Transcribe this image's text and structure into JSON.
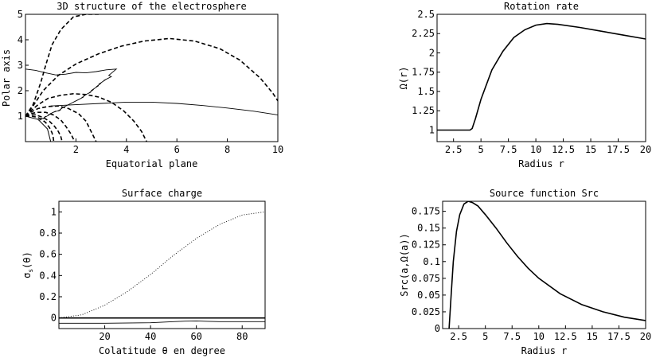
{
  "chart_data": [
    {
      "id": "p1",
      "type": "line",
      "title": "3D structure of the electrosphere",
      "xlabel": "Equatorial plane",
      "ylabel": "Polar axis",
      "xlim": [
        0,
        10
      ],
      "ylim": [
        0,
        5
      ],
      "xticks": [
        2,
        4,
        6,
        8,
        10
      ],
      "yticks": [
        1,
        2,
        3,
        4,
        5
      ],
      "grid": false,
      "dashed_field_lines": [
        {
          "x": [
            0.0,
            0.3,
            0.6,
            0.8,
            1.05,
            1.4,
            1.9,
            2.4,
            2.9
          ],
          "y": [
            1.0,
            1.45,
            2.3,
            3.0,
            3.8,
            4.4,
            4.9,
            5.0,
            5.0
          ]
        },
        {
          "x": [
            0.0,
            0.3,
            0.7,
            1.3,
            2.0,
            2.9,
            3.8,
            4.7,
            5.7,
            6.7,
            7.7,
            8.5,
            9.3,
            9.8,
            10.0
          ],
          "y": [
            1.0,
            1.4,
            2.0,
            2.6,
            3.05,
            3.45,
            3.75,
            3.95,
            4.05,
            3.95,
            3.65,
            3.2,
            2.5,
            1.9,
            1.6
          ]
        },
        {
          "x": [
            0.0,
            0.2,
            0.5,
            0.9,
            1.4,
            1.9,
            2.4,
            2.9,
            3.4,
            3.9,
            4.3,
            4.6,
            4.8
          ],
          "y": [
            1.0,
            1.2,
            1.45,
            1.7,
            1.82,
            1.88,
            1.85,
            1.75,
            1.55,
            1.2,
            0.8,
            0.4,
            0.0
          ]
        },
        {
          "x": [
            0.0,
            0.2,
            0.5,
            0.9,
            1.3,
            1.7,
            2.1,
            2.4,
            2.6,
            2.8
          ],
          "y": [
            1.0,
            1.15,
            1.3,
            1.38,
            1.4,
            1.3,
            1.1,
            0.8,
            0.4,
            0.0
          ]
        },
        {
          "x": [
            0.0,
            0.2,
            0.5,
            0.8,
            1.1,
            1.4,
            1.6,
            1.8,
            1.95
          ],
          "y": [
            1.0,
            1.1,
            1.15,
            1.15,
            1.05,
            0.85,
            0.6,
            0.3,
            0.0
          ]
        },
        {
          "x": [
            0.0,
            0.2,
            0.4,
            0.7,
            0.95,
            1.15,
            1.3,
            1.4,
            1.45
          ],
          "y": [
            1.0,
            1.05,
            1.05,
            0.95,
            0.8,
            0.6,
            0.4,
            0.2,
            0.0
          ]
        },
        {
          "x": [
            0.0,
            0.2,
            0.4,
            0.6,
            0.8,
            0.95,
            1.05,
            1.1,
            1.12
          ],
          "y": [
            1.0,
            1.0,
            0.97,
            0.9,
            0.75,
            0.55,
            0.35,
            0.15,
            0.0
          ]
        }
      ],
      "solid_lines": [
        {
          "x": [
            0.0,
            0.4,
            0.8,
            1.2,
            1.6,
            2.0,
            2.4,
            2.8,
            3.2,
            3.6,
            3.3,
            3.4,
            3.1,
            3.2,
            2.9,
            3.0,
            2.8,
            2.9,
            2.6,
            2.7,
            2.5,
            2.6,
            2.3,
            2.4,
            2.2,
            2.3,
            2.0,
            2.1,
            1.9,
            2.0,
            1.7,
            1.8,
            1.6,
            1.7,
            1.4,
            1.5,
            1.3,
            1.4,
            1.1,
            1.2,
            1.0,
            1.1,
            0.9,
            0.95,
            0.75,
            0.8,
            0.7,
            0.65,
            0.6,
            0.5
          ],
          "y": [
            2.85,
            2.8,
            2.7,
            2.62,
            2.65,
            2.72,
            2.7,
            2.75,
            2.82,
            2.85,
            2.6,
            2.55,
            2.4,
            2.45,
            2.25,
            2.3,
            2.15,
            2.2,
            2.0,
            2.05,
            1.9,
            1.95,
            1.8,
            1.85,
            1.7,
            1.75,
            1.6,
            1.65,
            1.55,
            1.6,
            1.45,
            1.5,
            1.4,
            1.45,
            1.3,
            1.35,
            1.2,
            1.25,
            1.15,
            1.2,
            1.1,
            1.15,
            1.05,
            1.05,
            0.95,
            1.0,
            0.9,
            0.92,
            0.85,
            0.85
          ]
        },
        {
          "x": [
            1.0,
            2.0,
            3.0,
            4.0,
            5.0,
            6.0,
            7.0,
            8.0,
            9.0,
            10.0
          ],
          "y": [
            1.4,
            1.45,
            1.5,
            1.55,
            1.55,
            1.5,
            1.42,
            1.32,
            1.2,
            1.05
          ]
        }
      ],
      "star_outline": {
        "x": [
          0.0,
          0.5,
          0.87,
          1.0
        ],
        "y": [
          1.0,
          0.87,
          0.5,
          0.0
        ]
      }
    },
    {
      "id": "p2",
      "type": "line",
      "title": "Rotation rate",
      "xlabel": "Radius r",
      "ylabel": "Ω(r)",
      "xlim": [
        1,
        20
      ],
      "ylim": [
        0.85,
        2.5
      ],
      "xticks": [
        "2.5",
        "5",
        "7.5",
        "10",
        "12.5",
        "15",
        "17.5",
        "20"
      ],
      "yticks": [
        "1",
        "1.25",
        "1.5",
        "1.75",
        "2",
        "2.25",
        "2.5"
      ],
      "grid": false,
      "series": [
        {
          "x": [
            1,
            2,
            3,
            4,
            4.2,
            4.5,
            5,
            6,
            7,
            8,
            9,
            10,
            11,
            12,
            14,
            16,
            18,
            20
          ],
          "y": [
            1,
            1,
            1,
            1,
            1.02,
            1.15,
            1.4,
            1.78,
            2.02,
            2.2,
            2.3,
            2.36,
            2.38,
            2.37,
            2.33,
            2.28,
            2.23,
            2.18
          ]
        }
      ]
    },
    {
      "id": "p3",
      "type": "line",
      "title": "Surface charge",
      "xlabel": "Colatitude θ en degree",
      "ylabel": "σs(θ)",
      "ylabel_main": "σ",
      "ylabel_sub": "s",
      "ylabel_tail": "(θ)",
      "xlim": [
        0,
        90
      ],
      "ylim": [
        -0.1,
        1.1
      ],
      "xticks": [
        "20",
        "40",
        "60",
        "80"
      ],
      "yticks": [
        "0",
        "0.2",
        "0.4",
        "0.6",
        "0.8",
        "1"
      ],
      "grid": false,
      "series": [
        {
          "style": "dotted",
          "x": [
            0,
            10,
            20,
            30,
            40,
            50,
            60,
            70,
            80,
            90
          ],
          "y": [
            0.0,
            0.03,
            0.12,
            0.25,
            0.41,
            0.59,
            0.75,
            0.88,
            0.97,
            1.0
          ]
        },
        {
          "style": "solid",
          "x": [
            0,
            90
          ],
          "y": [
            0.0,
            0.0
          ]
        },
        {
          "style": "solid-thin",
          "x": [
            0,
            20,
            40,
            50,
            55,
            60,
            65,
            70,
            80,
            90
          ],
          "y": [
            -0.05,
            -0.05,
            -0.045,
            -0.035,
            -0.03,
            -0.028,
            -0.032,
            -0.035,
            -0.035,
            -0.035
          ]
        }
      ]
    },
    {
      "id": "p4",
      "type": "line",
      "title": "Source function Src",
      "xlabel": "Radius r",
      "ylabel": "Src(a,Ω(a))",
      "xlim": [
        1,
        20
      ],
      "ylim": [
        0,
        0.19
      ],
      "xticks": [
        "2.5",
        "5",
        "7.5",
        "10",
        "12.5",
        "15",
        "17.5",
        "20"
      ],
      "yticks": [
        "0",
        "0.025",
        "0.05",
        "0.075",
        "0.1",
        "0.125",
        "0.15",
        "0.175"
      ],
      "grid": false,
      "series": [
        {
          "x": [
            1.6,
            1.8,
            2.0,
            2.3,
            2.6,
            3.0,
            3.4,
            3.8,
            4.3,
            5,
            6,
            7,
            8,
            9,
            10,
            12,
            14,
            16,
            18,
            20
          ],
          "y": [
            0.0,
            0.05,
            0.1,
            0.145,
            0.17,
            0.186,
            0.19,
            0.188,
            0.183,
            0.17,
            0.15,
            0.128,
            0.108,
            0.09,
            0.075,
            0.052,
            0.036,
            0.025,
            0.017,
            0.012
          ]
        }
      ]
    }
  ]
}
